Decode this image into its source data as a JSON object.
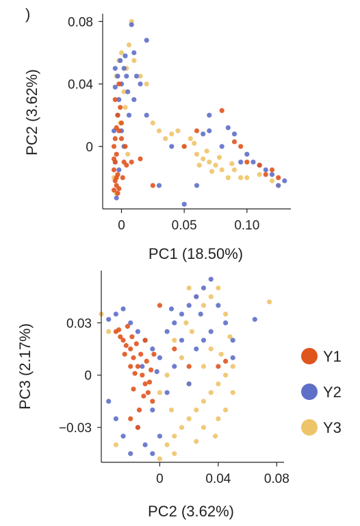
{
  "panel_marker": ")",
  "colors": {
    "Y1": "#E0541E",
    "Y2": "#5E6FC8",
    "Y3": "#EEC46A"
  },
  "chart_data": [
    {
      "type": "scatter",
      "xlabel": "PC1 (18.50%)",
      "ylabel": "PC2 (3.62%)",
      "xlim": [
        -0.015,
        0.135
      ],
      "ylim": [
        -0.04,
        0.085
      ],
      "xticks": [
        0,
        0.05,
        0.1
      ],
      "xtick_labels": [
        "0",
        "0.05",
        "0.10"
      ],
      "yticks": [
        0,
        0.04,
        0.08
      ],
      "ytick_labels": [
        "0",
        "0.04",
        "0.08"
      ],
      "legend": "none",
      "series": [
        {
          "name": "Y1",
          "points": [
            [
              -0.005,
              -0.01
            ],
            [
              -0.004,
              -0.02
            ],
            [
              -0.006,
              0.0
            ],
            [
              -0.003,
              -0.03
            ],
            [
              -0.002,
              0.01
            ],
            [
              -0.004,
              -0.005
            ],
            [
              -0.006,
              -0.015
            ],
            [
              -0.003,
              0.02
            ],
            [
              0.0,
              0.015
            ],
            [
              0.002,
              -0.01
            ],
            [
              0.004,
              -0.012
            ],
            [
              0.008,
              -0.01
            ],
            [
              0.015,
              -0.008
            ],
            [
              0.025,
              -0.025
            ],
            [
              0.05,
              0.0
            ],
            [
              0.08,
              0.023
            ],
            [
              0.09,
              0.003
            ],
            [
              0.095,
              0.0
            ],
            [
              0.11,
              -0.012
            ],
            [
              0.12,
              -0.015
            ],
            [
              0.125,
              -0.02
            ],
            [
              -0.005,
              0.03
            ],
            [
              -0.002,
              0.04
            ],
            [
              -0.004,
              -0.025
            ],
            [
              -0.006,
              -0.028
            ],
            [
              -0.005,
              0.005
            ],
            [
              -0.003,
              -0.018
            ],
            [
              -0.001,
              0.025
            ],
            [
              0.001,
              -0.02
            ],
            [
              0.003,
              0.0
            ],
            [
              -0.006,
              -0.008
            ],
            [
              -0.004,
              0.012
            ],
            [
              -0.002,
              -0.027
            ],
            [
              -0.005,
              -0.022
            ],
            [
              0.0,
              0.005
            ],
            [
              0.06,
              0.01
            ],
            [
              0.1,
              -0.01
            ],
            [
              0.115,
              -0.018
            ]
          ]
        },
        {
          "name": "Y2",
          "points": [
            [
              -0.005,
              0.05
            ],
            [
              -0.003,
              0.045
            ],
            [
              0.0,
              0.04
            ],
            [
              0.002,
              0.05
            ],
            [
              -0.002,
              0.03
            ],
            [
              0.005,
              0.035
            ],
            [
              0.01,
              0.03
            ],
            [
              0.02,
              0.02
            ],
            [
              0.015,
              0.04
            ],
            [
              0.01,
              0.06
            ],
            [
              0.02,
              0.068
            ],
            [
              0.008,
              0.078
            ],
            [
              -0.004,
              -0.033
            ],
            [
              -0.006,
              0.01
            ],
            [
              -0.005,
              -0.01
            ],
            [
              0.03,
              -0.025
            ],
            [
              0.04,
              0.0
            ],
            [
              0.05,
              -0.037
            ],
            [
              0.06,
              -0.025
            ],
            [
              0.07,
              0.01
            ],
            [
              0.08,
              0.0
            ],
            [
              0.085,
              0.012
            ],
            [
              0.09,
              0.008
            ],
            [
              0.1,
              -0.005
            ],
            [
              0.105,
              -0.01
            ],
            [
              0.11,
              -0.012
            ],
            [
              0.115,
              -0.015
            ],
            [
              0.12,
              -0.018
            ],
            [
              0.13,
              -0.022
            ],
            [
              0.125,
              -0.025
            ],
            [
              -0.001,
              0.055
            ],
            [
              -0.003,
              0.02
            ],
            [
              0.0,
              0.01
            ],
            [
              0.002,
              0.0
            ],
            [
              0.004,
              0.045
            ],
            [
              -0.002,
              -0.015
            ],
            [
              0.006,
              0.02
            ],
            [
              0.012,
              0.045
            ],
            [
              -0.005,
              0.038
            ],
            [
              0.003,
              0.058
            ],
            [
              0.07,
              0.02
            ],
            [
              0.065,
              0.008
            ],
            [
              0.095,
              -0.01
            ]
          ]
        },
        {
          "name": "Y3",
          "points": [
            [
              0.008,
              0.08
            ],
            [
              0.0,
              0.06
            ],
            [
              -0.002,
              0.055
            ],
            [
              0.004,
              0.05
            ],
            [
              0.006,
              0.065
            ],
            [
              0.01,
              0.055
            ],
            [
              0.015,
              0.045
            ],
            [
              0.02,
              0.04
            ],
            [
              0.025,
              0.015
            ],
            [
              0.03,
              0.01
            ],
            [
              0.035,
              0.005
            ],
            [
              0.04,
              0.008
            ],
            [
              0.045,
              0.01
            ],
            [
              0.05,
              0.0
            ],
            [
              0.055,
              0.005
            ],
            [
              0.06,
              -0.005
            ],
            [
              0.065,
              -0.008
            ],
            [
              0.07,
              -0.01
            ],
            [
              0.075,
              -0.012
            ],
            [
              0.08,
              -0.015
            ],
            [
              0.085,
              -0.02
            ],
            [
              0.09,
              -0.015
            ],
            [
              0.095,
              -0.02
            ],
            [
              0.1,
              -0.02
            ],
            [
              0.11,
              -0.018
            ],
            [
              0.12,
              -0.022
            ],
            [
              0.125,
              -0.025
            ],
            [
              0.002,
              0.035
            ],
            [
              -0.004,
              0.045
            ],
            [
              0.003,
              0.025
            ],
            [
              -0.001,
              0.015
            ],
            [
              -0.006,
              -0.02
            ],
            [
              -0.004,
              -0.03
            ],
            [
              0.005,
              -0.005
            ],
            [
              0.058,
              0.002
            ],
            [
              0.068,
              -0.003
            ],
            [
              0.078,
              -0.007
            ],
            [
              0.088,
              -0.011
            ],
            [
              0.062,
              -0.012
            ],
            [
              0.072,
              -0.016
            ]
          ]
        }
      ]
    },
    {
      "type": "scatter",
      "xlabel": "PC2 (3.62%)",
      "ylabel": "PC3 (2.17%)",
      "xlim": [
        -0.04,
        0.085
      ],
      "ylim": [
        -0.05,
        0.06
      ],
      "xticks": [
        0,
        0.04,
        0.08
      ],
      "xtick_labels": [
        "0",
        "0.04",
        "0.08"
      ],
      "yticks": [
        -0.03,
        0,
        0.03
      ],
      "ytick_labels": [
        "−0.03",
        "0",
        "0.03"
      ],
      "legend": "right",
      "series": [
        {
          "name": "Y1",
          "points": [
            [
              -0.03,
              0.025
            ],
            [
              -0.025,
              0.02
            ],
            [
              -0.02,
              0.015
            ],
            [
              -0.018,
              0.01
            ],
            [
              -0.015,
              0.005
            ],
            [
              -0.012,
              0.0
            ],
            [
              -0.01,
              -0.005
            ],
            [
              -0.008,
              -0.01
            ],
            [
              -0.005,
              -0.015
            ],
            [
              -0.022,
              0.028
            ],
            [
              -0.027,
              0.022
            ],
            [
              -0.016,
              0.018
            ],
            [
              -0.013,
              0.012
            ],
            [
              -0.02,
              0.005
            ],
            [
              -0.009,
              0.008
            ],
            [
              -0.006,
              0.003
            ],
            [
              -0.011,
              -0.012
            ],
            [
              -0.014,
              -0.02
            ],
            [
              -0.018,
              -0.008
            ],
            [
              -0.024,
              0.012
            ],
            [
              -0.028,
              0.026
            ],
            [
              -0.019,
              0.022
            ],
            [
              -0.007,
              -0.004
            ],
            [
              -0.004,
              0.012
            ],
            [
              0.0,
              0.04
            ],
            [
              0.01,
              0.015
            ],
            [
              0.02,
              0.005
            ],
            [
              0.04,
              0.005
            ],
            [
              0.045,
              0.008
            ],
            [
              -0.015,
              -0.03
            ],
            [
              -0.02,
              -0.025
            ],
            [
              -0.023,
              0.017
            ],
            [
              -0.017,
              0.001
            ],
            [
              -0.01,
              0.02
            ]
          ]
        },
        {
          "name": "Y2",
          "points": [
            [
              -0.035,
              0.032
            ],
            [
              -0.03,
              0.035
            ],
            [
              -0.025,
              0.038
            ],
            [
              -0.02,
              0.03
            ],
            [
              -0.015,
              0.025
            ],
            [
              -0.01,
              0.02
            ],
            [
              -0.005,
              0.015
            ],
            [
              0.0,
              0.01
            ],
            [
              0.005,
              0.025
            ],
            [
              0.01,
              0.03
            ],
            [
              0.015,
              0.035
            ],
            [
              0.02,
              0.04
            ],
            [
              0.025,
              0.045
            ],
            [
              0.03,
              0.05
            ],
            [
              0.035,
              0.055
            ],
            [
              0.04,
              0.04
            ],
            [
              0.045,
              0.03
            ],
            [
              0.05,
              0.02
            ],
            [
              0.05,
              0.01
            ],
            [
              -0.015,
              -0.03
            ],
            [
              -0.01,
              -0.04
            ],
            [
              -0.005,
              -0.045
            ],
            [
              0.0,
              -0.035
            ],
            [
              -0.02,
              -0.045
            ],
            [
              -0.025,
              -0.035
            ],
            [
              -0.03,
              -0.025
            ],
            [
              -0.035,
              -0.015
            ],
            [
              0.065,
              0.032
            ],
            [
              0.02,
              -0.005
            ],
            [
              0.03,
              0.02
            ],
            [
              0.01,
              0.005
            ],
            [
              -0.005,
              -0.02
            ],
            [
              0.005,
              -0.01
            ],
            [
              0.025,
              0.015
            ],
            [
              0.035,
              0.025
            ],
            [
              0.015,
              0.02
            ],
            [
              -0.012,
              0.005
            ],
            [
              -0.002,
              0.002
            ],
            [
              0.008,
              0.038
            ],
            [
              0.028,
              0.035
            ]
          ]
        },
        {
          "name": "Y3",
          "points": [
            [
              0.0,
              -0.048
            ],
            [
              0.005,
              -0.04
            ],
            [
              0.01,
              -0.035
            ],
            [
              0.015,
              -0.03
            ],
            [
              0.02,
              -0.025
            ],
            [
              0.025,
              -0.02
            ],
            [
              0.03,
              -0.015
            ],
            [
              0.035,
              -0.01
            ],
            [
              0.04,
              -0.005
            ],
            [
              0.045,
              0.0
            ],
            [
              0.05,
              0.005
            ],
            [
              0.05,
              -0.01
            ],
            [
              0.045,
              -0.02
            ],
            [
              0.04,
              -0.025
            ],
            [
              0.02,
              0.05
            ],
            [
              0.025,
              0.045
            ],
            [
              0.03,
              0.04
            ],
            [
              0.035,
              0.045
            ],
            [
              0.04,
              0.05
            ],
            [
              0.045,
              0.035
            ],
            [
              0.075,
              0.042
            ],
            [
              0.01,
              0.02
            ],
            [
              0.015,
              0.01
            ],
            [
              0.005,
              0.0
            ],
            [
              0.0,
              -0.01
            ],
            [
              0.02,
              -0.005
            ],
            [
              0.03,
              0.005
            ],
            [
              0.03,
              -0.03
            ],
            [
              0.025,
              -0.038
            ],
            [
              -0.04,
              0.035
            ],
            [
              -0.035,
              0.025
            ],
            [
              -0.03,
              -0.04
            ],
            [
              0.01,
              -0.045
            ],
            [
              0.035,
              0.015
            ],
            [
              0.042,
              0.012
            ],
            [
              0.018,
              0.03
            ],
            [
              0.008,
              -0.02
            ],
            [
              0.022,
              0.025
            ],
            [
              0.048,
              0.022
            ],
            [
              0.038,
              -0.035
            ]
          ]
        }
      ]
    }
  ]
}
